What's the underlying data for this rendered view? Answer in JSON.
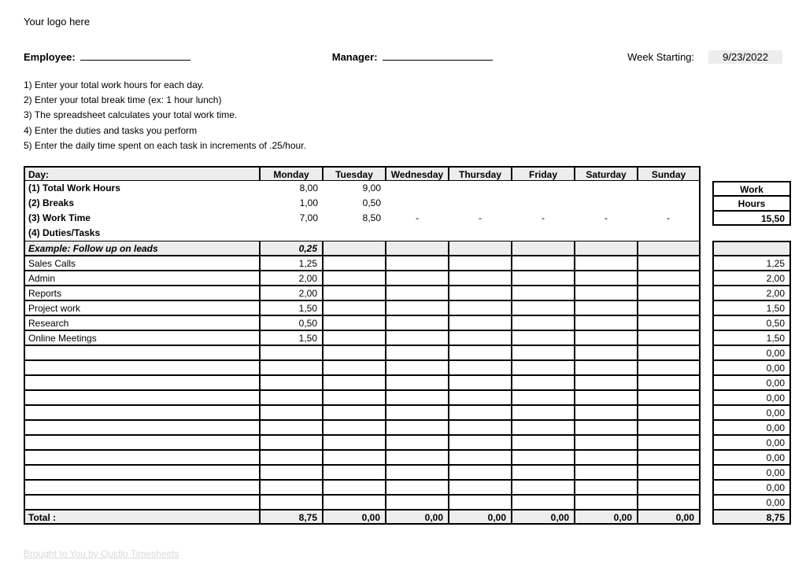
{
  "logo_text": "Your logo here",
  "header": {
    "employee_label": "Employee:",
    "manager_label": "Manager:",
    "week_starting_label": "Week Starting:",
    "week_starting_value": "9/23/2022"
  },
  "instructions": [
    "1) Enter your total work hours for each day.",
    "2) Enter your total break time (ex: 1 hour lunch)",
    "3) The spreadsheet calculates your total work time.",
    "4) Enter the duties and tasks you perform",
    "5) Enter the daily time spent on each task in increments of .25/hour."
  ],
  "table": {
    "day_label": "Day:",
    "days": [
      "Monday",
      "Tuesday",
      "Wednesday",
      "Thursday",
      "Friday",
      "Saturday",
      "Sunday"
    ],
    "row_total_label": "(1) Total Work Hours",
    "row_breaks_label": "(2) Breaks",
    "row_worktime_label": "(3) Work Time",
    "row_duties_label": "(4) Duties/Tasks",
    "totals": {
      "total_work_hours": [
        "8,00",
        "9,00",
        "",
        "",
        "",
        "",
        ""
      ],
      "breaks": [
        "1,00",
        "0,50",
        "",
        "",
        "",
        "",
        ""
      ],
      "work_time": [
        "7,00",
        "8,50",
        "-",
        "-",
        "-",
        "-",
        "-"
      ]
    },
    "work_hours_heading1": "Work",
    "work_hours_heading2": "Hours",
    "work_hours_total": "15,50",
    "example_label": "Example: Follow up on leads",
    "example_mon": "0,25",
    "tasks": [
      {
        "name": "Sales Calls",
        "vals": [
          "1,25",
          "",
          "",
          "",
          "",
          "",
          ""
        ],
        "tot": "1,25"
      },
      {
        "name": "Admin",
        "vals": [
          "2,00",
          "",
          "",
          "",
          "",
          "",
          ""
        ],
        "tot": "2,00"
      },
      {
        "name": "Reports",
        "vals": [
          "2,00",
          "",
          "",
          "",
          "",
          "",
          ""
        ],
        "tot": "2,00"
      },
      {
        "name": "Project work",
        "vals": [
          "1,50",
          "",
          "",
          "",
          "",
          "",
          ""
        ],
        "tot": "1,50"
      },
      {
        "name": "Research",
        "vals": [
          "0,50",
          "",
          "",
          "",
          "",
          "",
          ""
        ],
        "tot": "0,50"
      },
      {
        "name": "Online Meetings",
        "vals": [
          "1,50",
          "",
          "",
          "",
          "",
          "",
          ""
        ],
        "tot": "1,50"
      },
      {
        "name": "",
        "vals": [
          "",
          "",
          "",
          "",
          "",
          "",
          ""
        ],
        "tot": "0,00"
      },
      {
        "name": "",
        "vals": [
          "",
          "",
          "",
          "",
          "",
          "",
          ""
        ],
        "tot": "0,00"
      },
      {
        "name": "",
        "vals": [
          "",
          "",
          "",
          "",
          "",
          "",
          ""
        ],
        "tot": "0,00"
      },
      {
        "name": "",
        "vals": [
          "",
          "",
          "",
          "",
          "",
          "",
          ""
        ],
        "tot": "0,00"
      },
      {
        "name": "",
        "vals": [
          "",
          "",
          "",
          "",
          "",
          "",
          ""
        ],
        "tot": "0,00"
      },
      {
        "name": "",
        "vals": [
          "",
          "",
          "",
          "",
          "",
          "",
          ""
        ],
        "tot": "0,00"
      },
      {
        "name": "",
        "vals": [
          "",
          "",
          "",
          "",
          "",
          "",
          ""
        ],
        "tot": "0,00"
      },
      {
        "name": "",
        "vals": [
          "",
          "",
          "",
          "",
          "",
          "",
          ""
        ],
        "tot": "0,00"
      },
      {
        "name": "",
        "vals": [
          "",
          "",
          "",
          "",
          "",
          "",
          ""
        ],
        "tot": "0,00"
      },
      {
        "name": "",
        "vals": [
          "",
          "",
          "",
          "",
          "",
          "",
          ""
        ],
        "tot": "0,00"
      },
      {
        "name": "",
        "vals": [
          "",
          "",
          "",
          "",
          "",
          "",
          ""
        ],
        "tot": "0,00"
      }
    ],
    "total_row_label": "Total :",
    "total_row_vals": [
      "8,75",
      "0,00",
      "0,00",
      "0,00",
      "0,00",
      "0,00",
      "0,00"
    ],
    "total_row_sum": "8,75"
  },
  "footer_link": "Brought to You by Quidlo Timesheets"
}
